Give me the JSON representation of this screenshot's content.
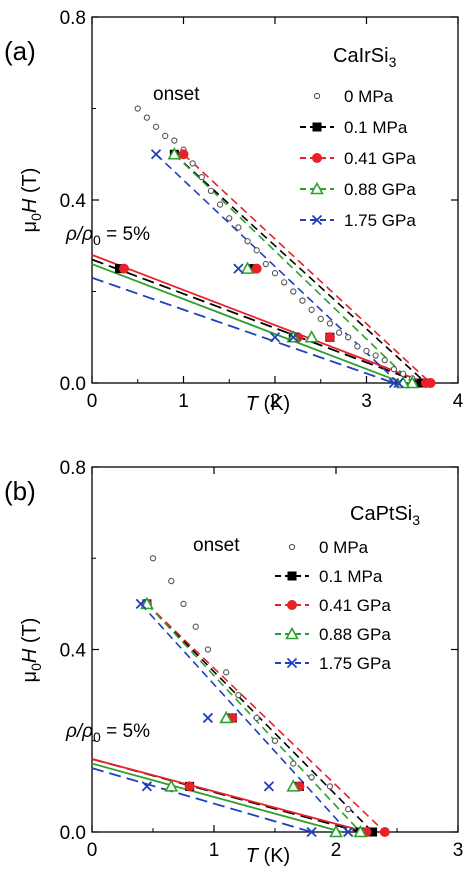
{
  "chart_data": [
    {
      "type": "scatter",
      "panel_label": "(a)",
      "compound": {
        "base": "CaIrSi",
        "sub": "3"
      },
      "onset_label": "onset",
      "ratio_label": {
        "rho": "ρ/ρ",
        "sub": "0",
        "rest": " = 5%"
      },
      "xlabel": {
        "italic": "T",
        "rest": " (K)"
      },
      "ylabel": {
        "mu": "μ",
        "sub": "0",
        "italic": "H",
        "rest": " (T)"
      },
      "xlim": [
        0,
        4
      ],
      "ylim": [
        0,
        0.8
      ],
      "xticks": [
        "0",
        "1",
        "2",
        "3",
        "4"
      ],
      "yticks": [
        "0.0",
        "0.4",
        "0.8"
      ],
      "legend_position": "right",
      "series": [
        {
          "name": "0 MPa",
          "color": "#555555",
          "marker": "circle-open",
          "line": "none",
          "onset": [
            [
              0.5,
              0.6
            ],
            [
              0.6,
              0.58
            ],
            [
              0.7,
              0.56
            ],
            [
              0.8,
              0.54
            ],
            [
              0.9,
              0.53
            ],
            [
              1.0,
              0.51
            ],
            [
              1.1,
              0.48
            ],
            [
              1.2,
              0.45
            ],
            [
              1.3,
              0.42
            ],
            [
              1.4,
              0.39
            ],
            [
              1.5,
              0.36
            ],
            [
              1.6,
              0.34
            ],
            [
              1.7,
              0.31
            ],
            [
              1.8,
              0.29
            ],
            [
              1.9,
              0.26
            ],
            [
              2.0,
              0.24
            ],
            [
              2.1,
              0.22
            ],
            [
              2.2,
              0.2
            ],
            [
              2.3,
              0.18
            ],
            [
              2.4,
              0.16
            ],
            [
              2.5,
              0.14
            ],
            [
              2.6,
              0.13
            ],
            [
              2.7,
              0.11
            ],
            [
              2.8,
              0.1
            ],
            [
              2.9,
              0.08
            ],
            [
              3.0,
              0.07
            ],
            [
              3.1,
              0.06
            ],
            [
              3.2,
              0.05
            ],
            [
              3.3,
              0.03
            ],
            [
              3.4,
              0.02
            ],
            [
              3.5,
              0.01
            ]
          ],
          "ratio": []
        },
        {
          "name": "0.1 MPa",
          "color": "#000000",
          "marker": "square",
          "line": "dash",
          "onset": [
            [
              0.9,
              0.5
            ],
            [
              1.75,
              0.25
            ],
            [
              2.6,
              0.1
            ],
            [
              3.65,
              0.0
            ]
          ],
          "ratio": [
            [
              0.3,
              0.25
            ],
            [
              2.2,
              0.1
            ],
            [
              3.6,
              0.0
            ]
          ],
          "fit_onset": [
            [
              0.9,
              0.5
            ],
            [
              3.65,
              0.0
            ]
          ],
          "fit_ratio": [
            [
              0.0,
              0.27
            ],
            [
              3.6,
              0.0
            ]
          ]
        },
        {
          "name": "0.41 GPa",
          "color": "#e8202a",
          "marker": "circle",
          "line": "dash",
          "onset": [
            [
              1.0,
              0.5
            ],
            [
              1.8,
              0.25
            ],
            [
              2.6,
              0.1
            ],
            [
              3.7,
              0.0
            ]
          ],
          "ratio": [
            [
              0.35,
              0.25
            ],
            [
              2.25,
              0.1
            ],
            [
              3.65,
              0.0
            ]
          ],
          "fit_onset": [
            [
              1.0,
              0.5
            ],
            [
              3.7,
              0.0
            ]
          ],
          "fit_ratio": [
            [
              0.0,
              0.28
            ],
            [
              3.65,
              0.0
            ]
          ]
        },
        {
          "name": "0.88 GPa",
          "color": "#2ca02c",
          "marker": "triangle-open",
          "line": "dash",
          "onset": [
            [
              0.9,
              0.5
            ],
            [
              1.7,
              0.25
            ],
            [
              2.4,
              0.1
            ],
            [
              3.5,
              0.0
            ]
          ],
          "ratio": [
            [
              2.2,
              0.1
            ],
            [
              3.4,
              0.0
            ]
          ],
          "fit_onset": [
            [
              0.9,
              0.5
            ],
            [
              3.5,
              0.0
            ]
          ],
          "fit_ratio": [
            [
              0.0,
              0.26
            ],
            [
              3.4,
              0.0
            ]
          ]
        },
        {
          "name": "1.75 GPa",
          "color": "#1f3fbf",
          "marker": "cross",
          "line": "dash",
          "onset": [
            [
              0.7,
              0.5
            ],
            [
              1.6,
              0.25
            ],
            [
              2.2,
              0.1
            ],
            [
              3.35,
              0.0
            ]
          ],
          "ratio": [
            [
              2.0,
              0.1
            ],
            [
              3.3,
              0.0
            ]
          ],
          "fit_onset": [
            [
              0.7,
              0.5
            ],
            [
              3.35,
              0.0
            ]
          ],
          "fit_ratio": [
            [
              0.0,
              0.23
            ],
            [
              3.3,
              0.0
            ]
          ]
        }
      ]
    },
    {
      "type": "scatter",
      "panel_label": "(b)",
      "compound": {
        "base": "CaPtSi",
        "sub": "3"
      },
      "onset_label": "onset",
      "ratio_label": {
        "rho": "ρ/ρ",
        "sub": "0",
        "rest": " = 5%"
      },
      "xlabel": {
        "italic": "T",
        "rest": " (K)"
      },
      "ylabel": {
        "mu": "μ",
        "sub": "0",
        "italic": "H",
        "rest": " (T)"
      },
      "xlim": [
        0,
        3
      ],
      "ylim": [
        0,
        0.8
      ],
      "xticks": [
        "0",
        "1",
        "2",
        "3"
      ],
      "yticks": [
        "0.0",
        "0.4",
        "0.8"
      ],
      "legend_position": "right",
      "series": [
        {
          "name": "0 MPa",
          "color": "#555555",
          "marker": "circle-open",
          "line": "none",
          "onset": [
            [
              0.5,
              0.6
            ],
            [
              0.65,
              0.55
            ],
            [
              0.75,
              0.5
            ],
            [
              0.85,
              0.45
            ],
            [
              0.95,
              0.4
            ],
            [
              1.1,
              0.35
            ],
            [
              1.2,
              0.3
            ],
            [
              1.35,
              0.25
            ],
            [
              1.5,
              0.2
            ],
            [
              1.65,
              0.15
            ],
            [
              1.8,
              0.12
            ],
            [
              1.95,
              0.1
            ],
            [
              2.1,
              0.05
            ],
            [
              2.3,
              0.0
            ]
          ],
          "ratio": []
        },
        {
          "name": "0.1 MPa",
          "color": "#000000",
          "marker": "square",
          "line": "dash",
          "onset": [
            [
              0.45,
              0.5
            ],
            [
              1.15,
              0.25
            ],
            [
              1.7,
              0.1
            ],
            [
              2.3,
              0.0
            ]
          ],
          "ratio": [
            [
              0.8,
              0.1
            ],
            [
              2.2,
              0.0
            ]
          ],
          "fit_onset": [
            [
              0.45,
              0.5
            ],
            [
              2.3,
              0.0
            ]
          ],
          "fit_ratio": [
            [
              0.0,
              0.16
            ],
            [
              2.2,
              0.0
            ]
          ]
        },
        {
          "name": "0.41 GPa",
          "color": "#e8202a",
          "marker": "circle",
          "line": "dash",
          "onset": [
            [
              0.45,
              0.5
            ],
            [
              1.15,
              0.25
            ],
            [
              1.7,
              0.1
            ],
            [
              2.4,
              0.0
            ]
          ],
          "ratio": [
            [
              0.8,
              0.1
            ],
            [
              2.25,
              0.0
            ]
          ],
          "fit_onset": [
            [
              0.45,
              0.5
            ],
            [
              2.4,
              0.0
            ]
          ],
          "fit_ratio": [
            [
              0.0,
              0.16
            ],
            [
              2.25,
              0.0
            ]
          ]
        },
        {
          "name": "0.88 GPa",
          "color": "#2ca02c",
          "marker": "triangle-open",
          "line": "dash",
          "onset": [
            [
              0.45,
              0.5
            ],
            [
              1.1,
              0.25
            ],
            [
              1.65,
              0.1
            ],
            [
              2.2,
              0.0
            ]
          ],
          "ratio": [
            [
              0.65,
              0.1
            ],
            [
              2.0,
              0.0
            ]
          ],
          "fit_onset": [
            [
              0.45,
              0.5
            ],
            [
              2.2,
              0.0
            ]
          ],
          "fit_ratio": [
            [
              0.0,
              0.15
            ],
            [
              2.05,
              0.0
            ]
          ]
        },
        {
          "name": "1.75 GPa",
          "color": "#1f3fbf",
          "marker": "cross",
          "line": "dash",
          "onset": [
            [
              0.4,
              0.5
            ],
            [
              0.95,
              0.25
            ],
            [
              1.45,
              0.1
            ],
            [
              2.1,
              0.0
            ]
          ],
          "ratio": [
            [
              0.45,
              0.1
            ],
            [
              1.8,
              0.0
            ]
          ],
          "fit_onset": [
            [
              0.4,
              0.5
            ],
            [
              2.1,
              0.0
            ]
          ],
          "fit_ratio": [
            [
              0.0,
              0.14
            ],
            [
              1.8,
              0.0
            ]
          ]
        }
      ]
    }
  ]
}
